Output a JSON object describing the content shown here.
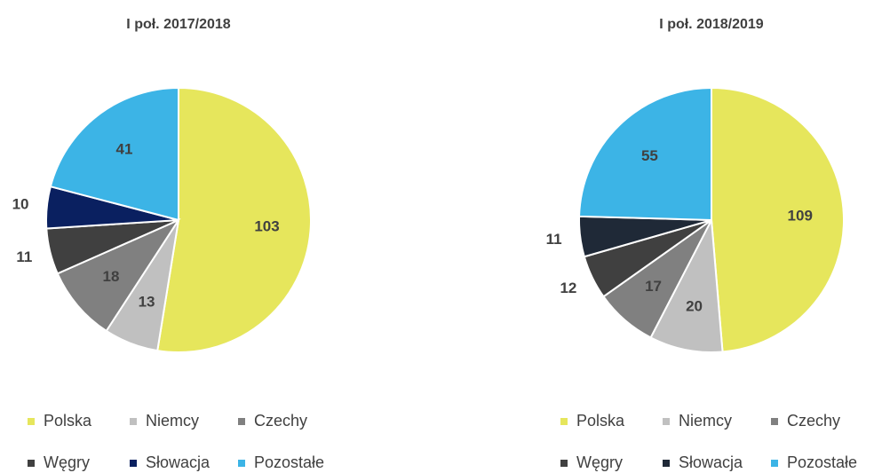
{
  "chart_data": [
    {
      "type": "pie",
      "title": "I poł. 2017/2018",
      "categories": [
        "Polska",
        "Niemcy",
        "Czechy",
        "Węgry",
        "Słowacja",
        "Pozostałe"
      ],
      "values": [
        103,
        13,
        18,
        11,
        10,
        41
      ],
      "colors": [
        "#e6e65c",
        "#c0c0c0",
        "#808080",
        "#404040",
        "#0a2060",
        "#3cb4e6"
      ]
    },
    {
      "type": "pie",
      "title": "I poł. 2018/2019",
      "categories": [
        "Polska",
        "Niemcy",
        "Czechy",
        "Węgry",
        "Słowacja",
        "Pozostałe"
      ],
      "values": [
        109,
        20,
        17,
        12,
        11,
        55
      ],
      "colors": [
        "#e6e65c",
        "#c0c0c0",
        "#808080",
        "#404040",
        "#1f2937",
        "#3cb4e6"
      ]
    }
  ]
}
